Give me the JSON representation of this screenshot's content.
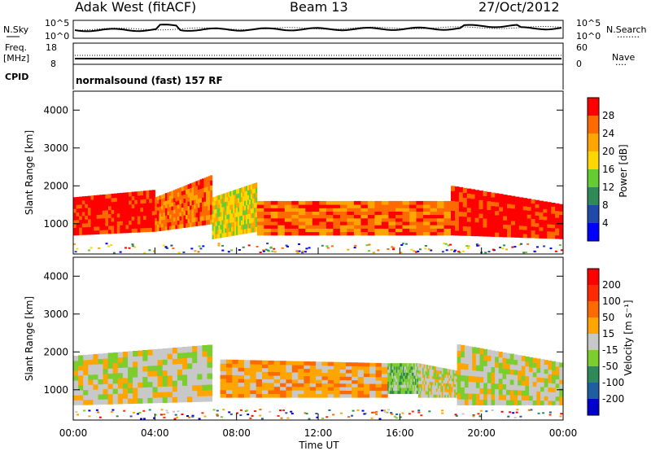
{
  "header": {
    "radar": "Adak West (fitACF)",
    "beam": "Beam 13",
    "date": "27/Oct/2012"
  },
  "noise_panel": {
    "left_label": "N.Sky",
    "left_ticks": [
      "10^5",
      "10^0"
    ],
    "right_ticks": [
      "10^5",
      "10^0"
    ],
    "right_label": "N.Search",
    "right_dotted": "........"
  },
  "freq_panel": {
    "left_label_1": "Freq.",
    "left_label_2": "[MHz]",
    "left_ticks": [
      "18",
      "8"
    ],
    "right_ticks": [
      "60",
      "0"
    ],
    "right_label": "Nave",
    "right_dotted": "....",
    "cpid_label": "CPID"
  },
  "cpid_text": "normalsound (fast) 157 RF",
  "time_axis": {
    "label": "Time UT",
    "ticks": [
      "00:00",
      "04:00",
      "08:00",
      "12:00",
      "16:00",
      "20:00",
      "00:00"
    ]
  },
  "power_panel": {
    "ylabel": "Slant Range [km]",
    "yticks": [
      "4000",
      "3000",
      "2000",
      "1000"
    ],
    "colorbar_label": "Power [dB]",
    "colorbar_ticks": [
      "28",
      "24",
      "20",
      "16",
      "12",
      "8",
      "4"
    ],
    "colors": [
      "#0000ff",
      "#1f4aa8",
      "#2e8b57",
      "#66cc33",
      "#ffd700",
      "#ffa500",
      "#ff6a00",
      "#ff0000"
    ]
  },
  "velocity_panel": {
    "ylabel": "Slant Range [km]",
    "yticks": [
      "4000",
      "3000",
      "2000",
      "1000"
    ],
    "colorbar_label": "Velocity [m s⁻¹]",
    "colorbar_ticks": [
      "200",
      "100",
      "50",
      "15",
      "-15",
      "-50",
      "-100",
      "-200"
    ],
    "colors": [
      "#0000cc",
      "#1f5fa0",
      "#2e8b57",
      "#7ccd2e",
      "#c8c8c8",
      "#ffa500",
      "#ff6a00",
      "#ff2a00",
      "#ff0000"
    ]
  },
  "chart_data": {
    "type": "heatmap",
    "x_unit": "hours UT",
    "xlim": [
      0,
      24
    ],
    "ylim": [
      200,
      4500
    ],
    "power_bands": [
      {
        "x": [
          0,
          4
        ],
        "range_low": [
          700,
          800
        ],
        "range_high": [
          1700,
          1900
        ],
        "level": 7
      },
      {
        "x": [
          4,
          6.8
        ],
        "range_low": [
          800,
          1000
        ],
        "range_high": [
          1700,
          2300
        ],
        "level": 6
      },
      {
        "x": [
          6.8,
          9
        ],
        "range_low": [
          600,
          800
        ],
        "range_high": [
          1700,
          2100
        ],
        "level": 4
      },
      {
        "x": [
          9,
          18.5
        ],
        "range_low": [
          700,
          700
        ],
        "range_high": [
          1600,
          1600
        ],
        "level": 6
      },
      {
        "x": [
          18.5,
          24
        ],
        "range_low": [
          700,
          600
        ],
        "range_high": [
          2000,
          1500
        ],
        "level": 7
      }
    ],
    "velocity_bands": [
      {
        "x": [
          0,
          6.8
        ],
        "range_low": [
          600,
          700
        ],
        "range_high": [
          1900,
          2200
        ],
        "level": 4
      },
      {
        "x": [
          7.2,
          15.4
        ],
        "range_low": [
          800,
          800
        ],
        "range_high": [
          1800,
          1700
        ],
        "level": 5
      },
      {
        "x": [
          15.4,
          16.9
        ],
        "range_low": [
          900,
          900
        ],
        "range_high": [
          1700,
          1700
        ],
        "level": 3
      },
      {
        "x": [
          16.9,
          18.8
        ],
        "range_low": [
          800,
          800
        ],
        "range_high": [
          1700,
          1500
        ],
        "level": 4
      },
      {
        "x": [
          18.8,
          24
        ],
        "range_low": [
          600,
          600
        ],
        "range_high": [
          2200,
          1700
        ],
        "level": 4
      }
    ]
  }
}
